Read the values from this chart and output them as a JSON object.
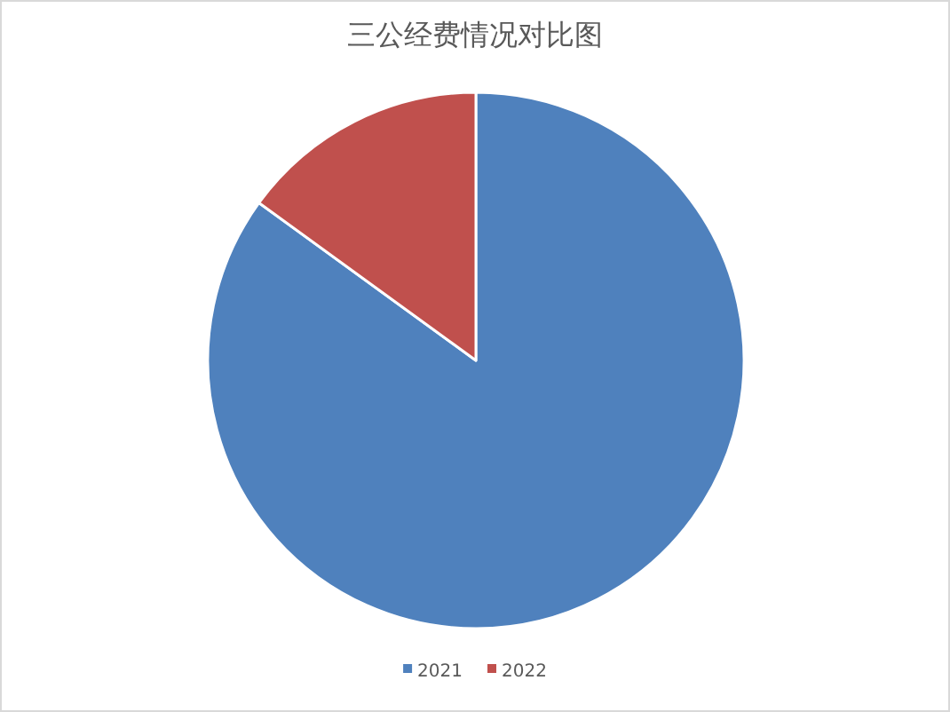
{
  "chart_data": {
    "type": "pie",
    "title": "三公经费情况对比图",
    "categories": [
      "2021",
      "2022"
    ],
    "values": [
      85,
      15
    ],
    "colors": [
      "#4f81bd",
      "#c0504d"
    ],
    "legend": "bottom"
  }
}
